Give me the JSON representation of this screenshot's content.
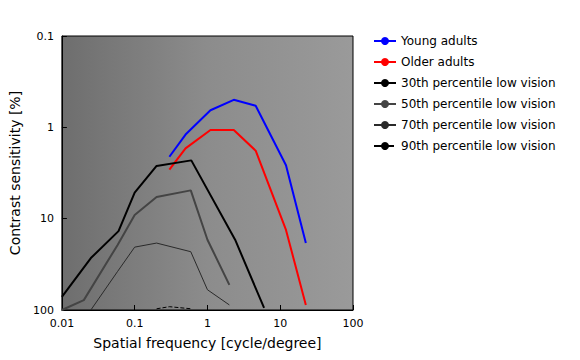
{
  "chart_data": {
    "type": "line",
    "x_label": "Spatial frequency [cycle/degree]",
    "y_label": "Contrast sensitivity [%]",
    "log": true,
    "grid": false,
    "legend": "right",
    "xlim": [
      0.01,
      100
    ],
    "xticks": [
      0.01,
      0.1,
      1,
      10,
      100
    ],
    "ylim": [
      100,
      0.1
    ],
    "yticks": [
      0.1,
      1,
      10,
      100
    ],
    "series": [
      {
        "name": "Young adults",
        "color": "#0000ff",
        "line_style": "solid",
        "x": [
          0.3,
          0.5,
          1.1,
          2.3,
          4.6,
          12,
          22.5
        ],
        "values": [
          2.1,
          1.2,
          0.65,
          0.5,
          0.58,
          2.6,
          18.5
        ]
      },
      {
        "name": "Older adults",
        "color": "#ff0000",
        "line_style": "solid",
        "x": [
          0.3,
          0.5,
          1.1,
          2.3,
          4.6,
          12,
          22.5
        ],
        "values": [
          2.9,
          1.7,
          1.07,
          1.07,
          1.8,
          13.3,
          88
        ]
      },
      {
        "name": "30th percentile low vision",
        "color": "#000000",
        "line_style": "solid",
        "x": [
          0.01,
          0.025,
          0.06,
          0.1,
          0.2,
          0.6,
          2.4,
          6
        ],
        "values": [
          72,
          27,
          13.7,
          5.2,
          2.65,
          2.3,
          17,
          95
        ]
      },
      {
        "name": "50th percentile low vision",
        "color": "#444444",
        "line_style": "solid",
        "x": [
          0.01,
          0.02,
          0.058,
          0.1,
          0.2,
          0.59,
          1,
          2
        ],
        "values": [
          100,
          78,
          19.5,
          9.1,
          5.8,
          4.9,
          17,
          53
        ]
      },
      {
        "name": "70th percentile low vision",
        "color": "#2a2a2a",
        "line_style": "solid",
        "x": [
          0.025,
          0.058,
          0.1,
          0.2,
          0.59,
          1,
          2
        ],
        "values": [
          100,
          38,
          20.5,
          18.5,
          23,
          60,
          88
        ]
      },
      {
        "name": "90th percentile low vision",
        "color": "#000000",
        "line_style": "dashed",
        "x": [
          0.2,
          0.3,
          0.6
        ],
        "values": [
          97,
          92,
          97
        ]
      }
    ]
  }
}
